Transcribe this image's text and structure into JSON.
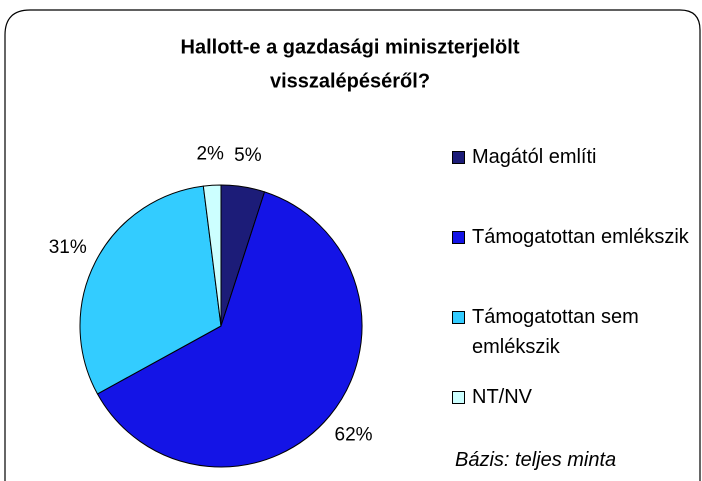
{
  "chart_data": {
    "type": "pie",
    "title": [
      "Hallott-e a gazdasági miniszterjelölt",
      "visszalépéséről?"
    ],
    "categories": [
      "Magától említi",
      "Támogatottan emlékszik",
      "Támogatottan sem emlékszik",
      "NT/NV"
    ],
    "values": [
      5,
      62,
      31,
      2
    ],
    "value_labels": [
      "5%",
      "62%",
      "31%",
      "2%"
    ],
    "colors": [
      "#1c1c78",
      "#1414e6",
      "#33ccff",
      "#ccffff"
    ],
    "legend": "right",
    "footnote": "Bázis: teljes minta"
  }
}
